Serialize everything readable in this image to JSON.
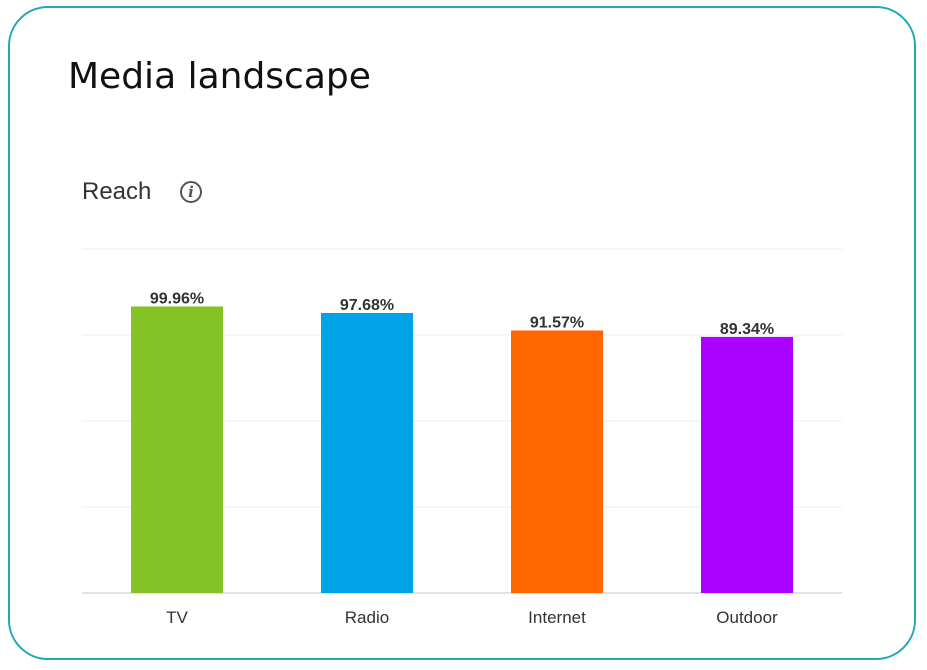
{
  "header": {
    "title": "Media landscape"
  },
  "chart_data": {
    "type": "bar",
    "title": "Reach",
    "categories": [
      "TV",
      "Radio",
      "Internet",
      "Outdoor"
    ],
    "values": [
      99.96,
      97.68,
      91.57,
      89.34
    ],
    "data_labels": [
      "99.96%",
      "97.68%",
      "91.57%",
      "89.34%"
    ],
    "colors": [
      "#85c226",
      "#00a3e6",
      "#ff6600",
      "#aa00ff"
    ],
    "ylim": [
      0,
      120
    ],
    "yticks": [
      0,
      30,
      60,
      90,
      120
    ],
    "grid": true,
    "xlabel": "",
    "ylabel": ""
  },
  "icons": {
    "info": "info-icon"
  }
}
